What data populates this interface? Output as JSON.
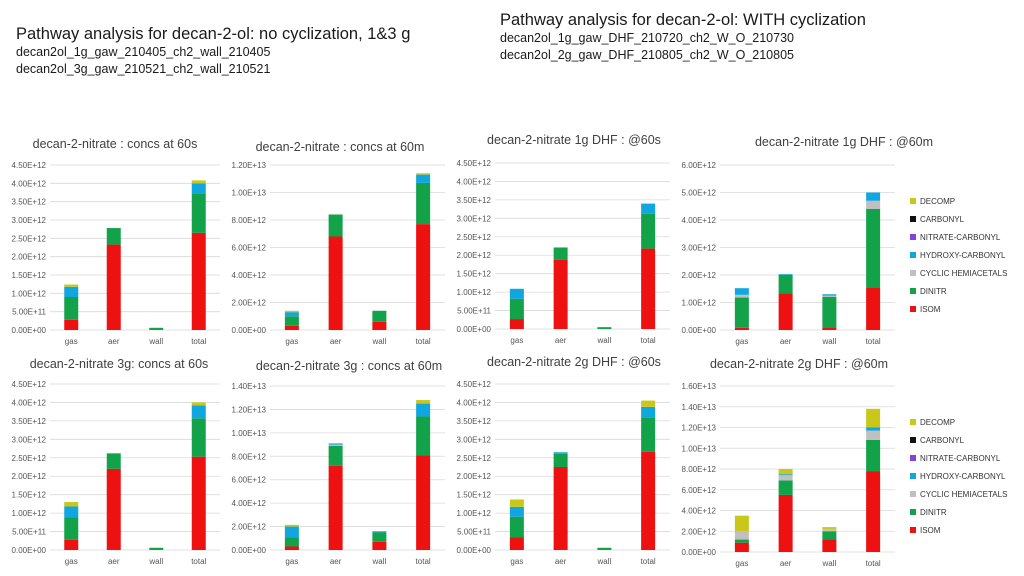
{
  "header_left": {
    "title": "Pathway analysis for decan-2-ol: no cyclization, 1&3 g",
    "lines": [
      "decan2ol_1g_gaw_210405_ch2_wall_210405",
      "decan2ol_3g_gaw_210521_ch2_wall_210521"
    ]
  },
  "header_right": {
    "title": "Pathway analysis for decan-2-ol: WITH cyclization",
    "lines": [
      "decan2ol_1g_gaw_DHF_210720_ch2_W_O_210730",
      "decan2ol_2g_gaw_DHF_210805_ch2_W_O_210805"
    ]
  },
  "legend": {
    "items": [
      {
        "label": "DECOMP",
        "color": "#c9c81a"
      },
      {
        "label": "CARBONYL",
        "color": "#111111"
      },
      {
        "label": "NITRATE-CARBONYL",
        "color": "#8a3fd6"
      },
      {
        "label": "HYDROXY-CARBONYL",
        "color": "#10a6df"
      },
      {
        "label": "CYCLIC HEMIACETALS",
        "color": "#c0c0c0"
      },
      {
        "label": "DINITR",
        "color": "#12a24a"
      },
      {
        "label": "ISOM",
        "color": "#ee1111"
      }
    ]
  },
  "chart_data": [
    {
      "type": "bar",
      "stacked": true,
      "title": "decan-2-nitrate : concs at 60s",
      "categories": [
        "gas",
        "aer",
        "wall",
        "total"
      ],
      "yticks": [
        "0.00E+00",
        "5.00E+11",
        "1.00E+12",
        "1.50E+12",
        "2.00E+12",
        "2.50E+12",
        "3.00E+12",
        "3.50E+12",
        "4.00E+12",
        "4.50E+12"
      ],
      "ylim": [
        0,
        4500000000000.0
      ],
      "series": [
        {
          "name": "ISOM",
          "values": [
            280000000000.0,
            2330000000000.0,
            0,
            2650000000000.0
          ]
        },
        {
          "name": "DINITR",
          "values": [
            620000000000.0,
            450000000000.0,
            60000000000.0,
            1080000000000.0
          ]
        },
        {
          "name": "CYCLIC HEMIACETALS",
          "values": [
            0,
            0,
            0,
            0
          ]
        },
        {
          "name": "HYDROXY-CARBONYL",
          "values": [
            280000000000.0,
            0,
            0,
            270000000000.0
          ]
        },
        {
          "name": "NITRATE-CARBONYL",
          "values": [
            0,
            0,
            0,
            0
          ]
        },
        {
          "name": "CARBONYL",
          "values": [
            0,
            0,
            0,
            0
          ]
        },
        {
          "name": "DECOMP",
          "values": [
            60000000000.0,
            0,
            0,
            80000000000.0
          ]
        }
      ]
    },
    {
      "type": "bar",
      "stacked": true,
      "title": "decan-2-nitrate : concs at 60m",
      "categories": [
        "gas",
        "aer",
        "wall",
        "total"
      ],
      "yticks": [
        "0.00E+00",
        "2.00E+12",
        "4.00E+12",
        "6.00E+12",
        "8.00E+12",
        "1.00E+13",
        "1.20E+13"
      ],
      "ylim": [
        0,
        12000000000000.0
      ],
      "series": [
        {
          "name": "ISOM",
          "values": [
            300000000000.0,
            6800000000000.0,
            600000000000.0,
            7700000000000.0
          ]
        },
        {
          "name": "DINITR",
          "values": [
            700000000000.0,
            1600000000000.0,
            800000000000.0,
            3000000000000.0
          ]
        },
        {
          "name": "CYCLIC HEMIACETALS",
          "values": [
            0,
            0,
            0,
            0
          ]
        },
        {
          "name": "HYDROXY-CARBONYL",
          "values": [
            300000000000.0,
            0,
            0,
            600000000000.0
          ]
        },
        {
          "name": "NITRATE-CARBONYL",
          "values": [
            0,
            0,
            0,
            0
          ]
        },
        {
          "name": "CARBONYL",
          "values": [
            0,
            0,
            0,
            0
          ]
        },
        {
          "name": "DECOMP",
          "values": [
            100000000000.0,
            0,
            0,
            100000000000.0
          ]
        }
      ]
    },
    {
      "type": "bar",
      "stacked": true,
      "title": "decan-2-nitrate 1g DHF : @60s",
      "categories": [
        "gas",
        "aer",
        "wall",
        "total"
      ],
      "yticks": [
        "0.00E+00",
        "5.00E+11",
        "1.00E+12",
        "1.50E+12",
        "2.00E+12",
        "2.50E+12",
        "3.00E+12",
        "3.50E+12",
        "4.00E+12",
        "4.50E+12"
      ],
      "ylim": [
        0,
        4500000000000.0
      ],
      "series": [
        {
          "name": "ISOM",
          "values": [
            270000000000.0,
            1880000000000.0,
            0,
            2180000000000.0
          ]
        },
        {
          "name": "DINITR",
          "values": [
            550000000000.0,
            330000000000.0,
            50000000000.0,
            940000000000.0
          ]
        },
        {
          "name": "CYCLIC HEMIACETALS",
          "values": [
            0,
            0,
            0,
            0
          ]
        },
        {
          "name": "HYDROXY-CARBONYL",
          "values": [
            270000000000.0,
            0,
            0,
            280000000000.0
          ]
        },
        {
          "name": "NITRATE-CARBONYL",
          "values": [
            0,
            0,
            0,
            0
          ]
        },
        {
          "name": "CARBONYL",
          "values": [
            0,
            0,
            0,
            0
          ]
        },
        {
          "name": "DECOMP",
          "values": [
            0,
            0,
            0,
            0
          ]
        }
      ]
    },
    {
      "type": "bar",
      "stacked": true,
      "title": "decan-2-nitrate 1g DHF : @60m",
      "categories": [
        "gas",
        "aer",
        "wall",
        "total"
      ],
      "yticks": [
        "0.00E+00",
        "1.00E+12",
        "2.00E+12",
        "3.00E+12",
        "4.00E+12",
        "5.00E+12",
        "6.00E+12"
      ],
      "ylim": [
        0,
        6000000000000.0
      ],
      "series": [
        {
          "name": "ISOM",
          "values": [
            80000000000.0,
            1330000000000.0,
            100000000000.0,
            1550000000000.0
          ]
        },
        {
          "name": "DINITR",
          "values": [
            1100000000000.0,
            670000000000.0,
            1100000000000.0,
            2850000000000.0
          ]
        },
        {
          "name": "CYCLIC HEMIACETALS",
          "values": [
            100000000000.0,
            0,
            50000000000.0,
            300000000000.0
          ]
        },
        {
          "name": "HYDROXY-CARBONYL",
          "values": [
            240000000000.0,
            30000000000.0,
            50000000000.0,
            300000000000.0
          ]
        },
        {
          "name": "NITRATE-CARBONYL",
          "values": [
            0,
            0,
            0,
            0
          ]
        },
        {
          "name": "CARBONYL",
          "values": [
            0,
            0,
            0,
            0
          ]
        },
        {
          "name": "DECOMP",
          "values": [
            0,
            0,
            0,
            0
          ]
        }
      ]
    },
    {
      "type": "bar",
      "stacked": true,
      "title": "decan-2-nitrate 3g: concs at 60s",
      "categories": [
        "gas",
        "aer",
        "wall",
        "total"
      ],
      "yticks": [
        "0.00E+00",
        "5.00E+11",
        "1.00E+12",
        "1.50E+12",
        "2.00E+12",
        "2.50E+12",
        "3.00E+12",
        "3.50E+12",
        "4.00E+12",
        "4.50E+12"
      ],
      "ylim": [
        0,
        4500000000000.0
      ],
      "series": [
        {
          "name": "ISOM",
          "values": [
            280000000000.0,
            2200000000000.0,
            0,
            2530000000000.0
          ]
        },
        {
          "name": "DINITR",
          "values": [
            600000000000.0,
            420000000000.0,
            60000000000.0,
            1040000000000.0
          ]
        },
        {
          "name": "CYCLIC HEMIACETALS",
          "values": [
            0,
            0,
            0,
            0
          ]
        },
        {
          "name": "HYDROXY-CARBONYL",
          "values": [
            300000000000.0,
            0,
            0,
            350000000000.0
          ]
        },
        {
          "name": "NITRATE-CARBONYL",
          "values": [
            0,
            0,
            0,
            0
          ]
        },
        {
          "name": "CARBONYL",
          "values": [
            0,
            0,
            0,
            0
          ]
        },
        {
          "name": "DECOMP",
          "values": [
            120000000000.0,
            0,
            0,
            80000000000.0
          ]
        }
      ]
    },
    {
      "type": "bar",
      "stacked": true,
      "title": "decan-2-nitrate 3g : concs at 60m",
      "categories": [
        "gas",
        "aer",
        "wall",
        "total"
      ],
      "yticks": [
        "0.00E+00",
        "2.00E+12",
        "4.00E+12",
        "6.00E+12",
        "8.00E+12",
        "1.00E+13",
        "1.20E+13",
        "1.40E+13"
      ],
      "ylim": [
        0,
        14000000000000.0
      ],
      "series": [
        {
          "name": "ISOM",
          "values": [
            300000000000.0,
            7200000000000.0,
            700000000000.0,
            8100000000000.0
          ]
        },
        {
          "name": "DINITR",
          "values": [
            800000000000.0,
            1700000000000.0,
            800000000000.0,
            3300000000000.0
          ]
        },
        {
          "name": "CYCLIC HEMIACETALS",
          "values": [
            0,
            100000000000.0,
            0,
            0
          ]
        },
        {
          "name": "HYDROXY-CARBONYL",
          "values": [
            900000000000.0,
            100000000000.0,
            100000000000.0,
            1100000000000.0
          ]
        },
        {
          "name": "NITRATE-CARBONYL",
          "values": [
            0,
            0,
            0,
            0
          ]
        },
        {
          "name": "CARBONYL",
          "values": [
            0,
            0,
            0,
            0
          ]
        },
        {
          "name": "DECOMP",
          "values": [
            150000000000.0,
            0,
            0,
            300000000000.0
          ]
        }
      ]
    },
    {
      "type": "bar",
      "stacked": true,
      "title": "decan-2-nitrate 2g DHF : @60s",
      "categories": [
        "gas",
        "aer",
        "wall",
        "total"
      ],
      "yticks": [
        "0.00E+00",
        "5.00E+11",
        "1.00E+12",
        "1.50E+12",
        "2.00E+12",
        "2.50E+12",
        "3.00E+12",
        "3.50E+12",
        "4.00E+12",
        "4.50E+12"
      ],
      "ylim": [
        0,
        4500000000000.0
      ],
      "series": [
        {
          "name": "ISOM",
          "values": [
            350000000000.0,
            2250000000000.0,
            0,
            2660000000000.0
          ]
        },
        {
          "name": "DINITR",
          "values": [
            550000000000.0,
            360000000000.0,
            60000000000.0,
            940000000000.0
          ]
        },
        {
          "name": "CYCLIC HEMIACETALS",
          "values": [
            0,
            0,
            0,
            0
          ]
        },
        {
          "name": "HYDROXY-CARBONYL",
          "values": [
            270000000000.0,
            40000000000.0,
            0,
            280000000000.0
          ]
        },
        {
          "name": "NITRATE-CARBONYL",
          "values": [
            0,
            0,
            0,
            0
          ]
        },
        {
          "name": "CARBONYL",
          "values": [
            0,
            0,
            0,
            0
          ]
        },
        {
          "name": "DECOMP",
          "values": [
            200000000000.0,
            0,
            0,
            170000000000.0
          ]
        }
      ]
    },
    {
      "type": "bar",
      "stacked": true,
      "title": "decan-2-nitrate 2g DHF : @60m",
      "categories": [
        "gas",
        "aer",
        "wall",
        "total"
      ],
      "yticks": [
        "0.00E+00",
        "2.00E+12",
        "4.00E+12",
        "6.00E+12",
        "8.00E+12",
        "1.00E+13",
        "1.20E+13",
        "1.40E+13",
        "1.60E+13"
      ],
      "ylim": [
        0,
        16000000000000.0
      ],
      "series": [
        {
          "name": "ISOM",
          "values": [
            900000000000.0,
            5500000000000.0,
            1200000000000.0,
            7800000000000.0
          ]
        },
        {
          "name": "DINITR",
          "values": [
            300000000000.0,
            1400000000000.0,
            800000000000.0,
            3000000000000.0
          ]
        },
        {
          "name": "CYCLIC HEMIACETALS",
          "values": [
            800000000000.0,
            500000000000.0,
            200000000000.0,
            900000000000.0
          ]
        },
        {
          "name": "HYDROXY-CARBONYL",
          "values": [
            0,
            100000000000.0,
            0,
            300000000000.0
          ]
        },
        {
          "name": "NITRATE-CARBONYL",
          "values": [
            0,
            0,
            0,
            0
          ]
        },
        {
          "name": "CARBONYL",
          "values": [
            0,
            0,
            0,
            0
          ]
        },
        {
          "name": "DECOMP",
          "values": [
            1500000000000.0,
            500000000000.0,
            200000000000.0,
            1800000000000.0
          ]
        }
      ]
    }
  ]
}
